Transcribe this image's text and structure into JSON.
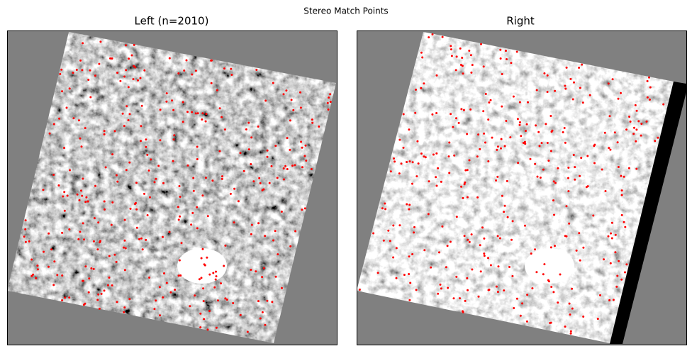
{
  "title": "Stereo Match Points",
  "panels": [
    {
      "title": "Left (n=2010)"
    },
    {
      "title": "Right"
    }
  ]
}
